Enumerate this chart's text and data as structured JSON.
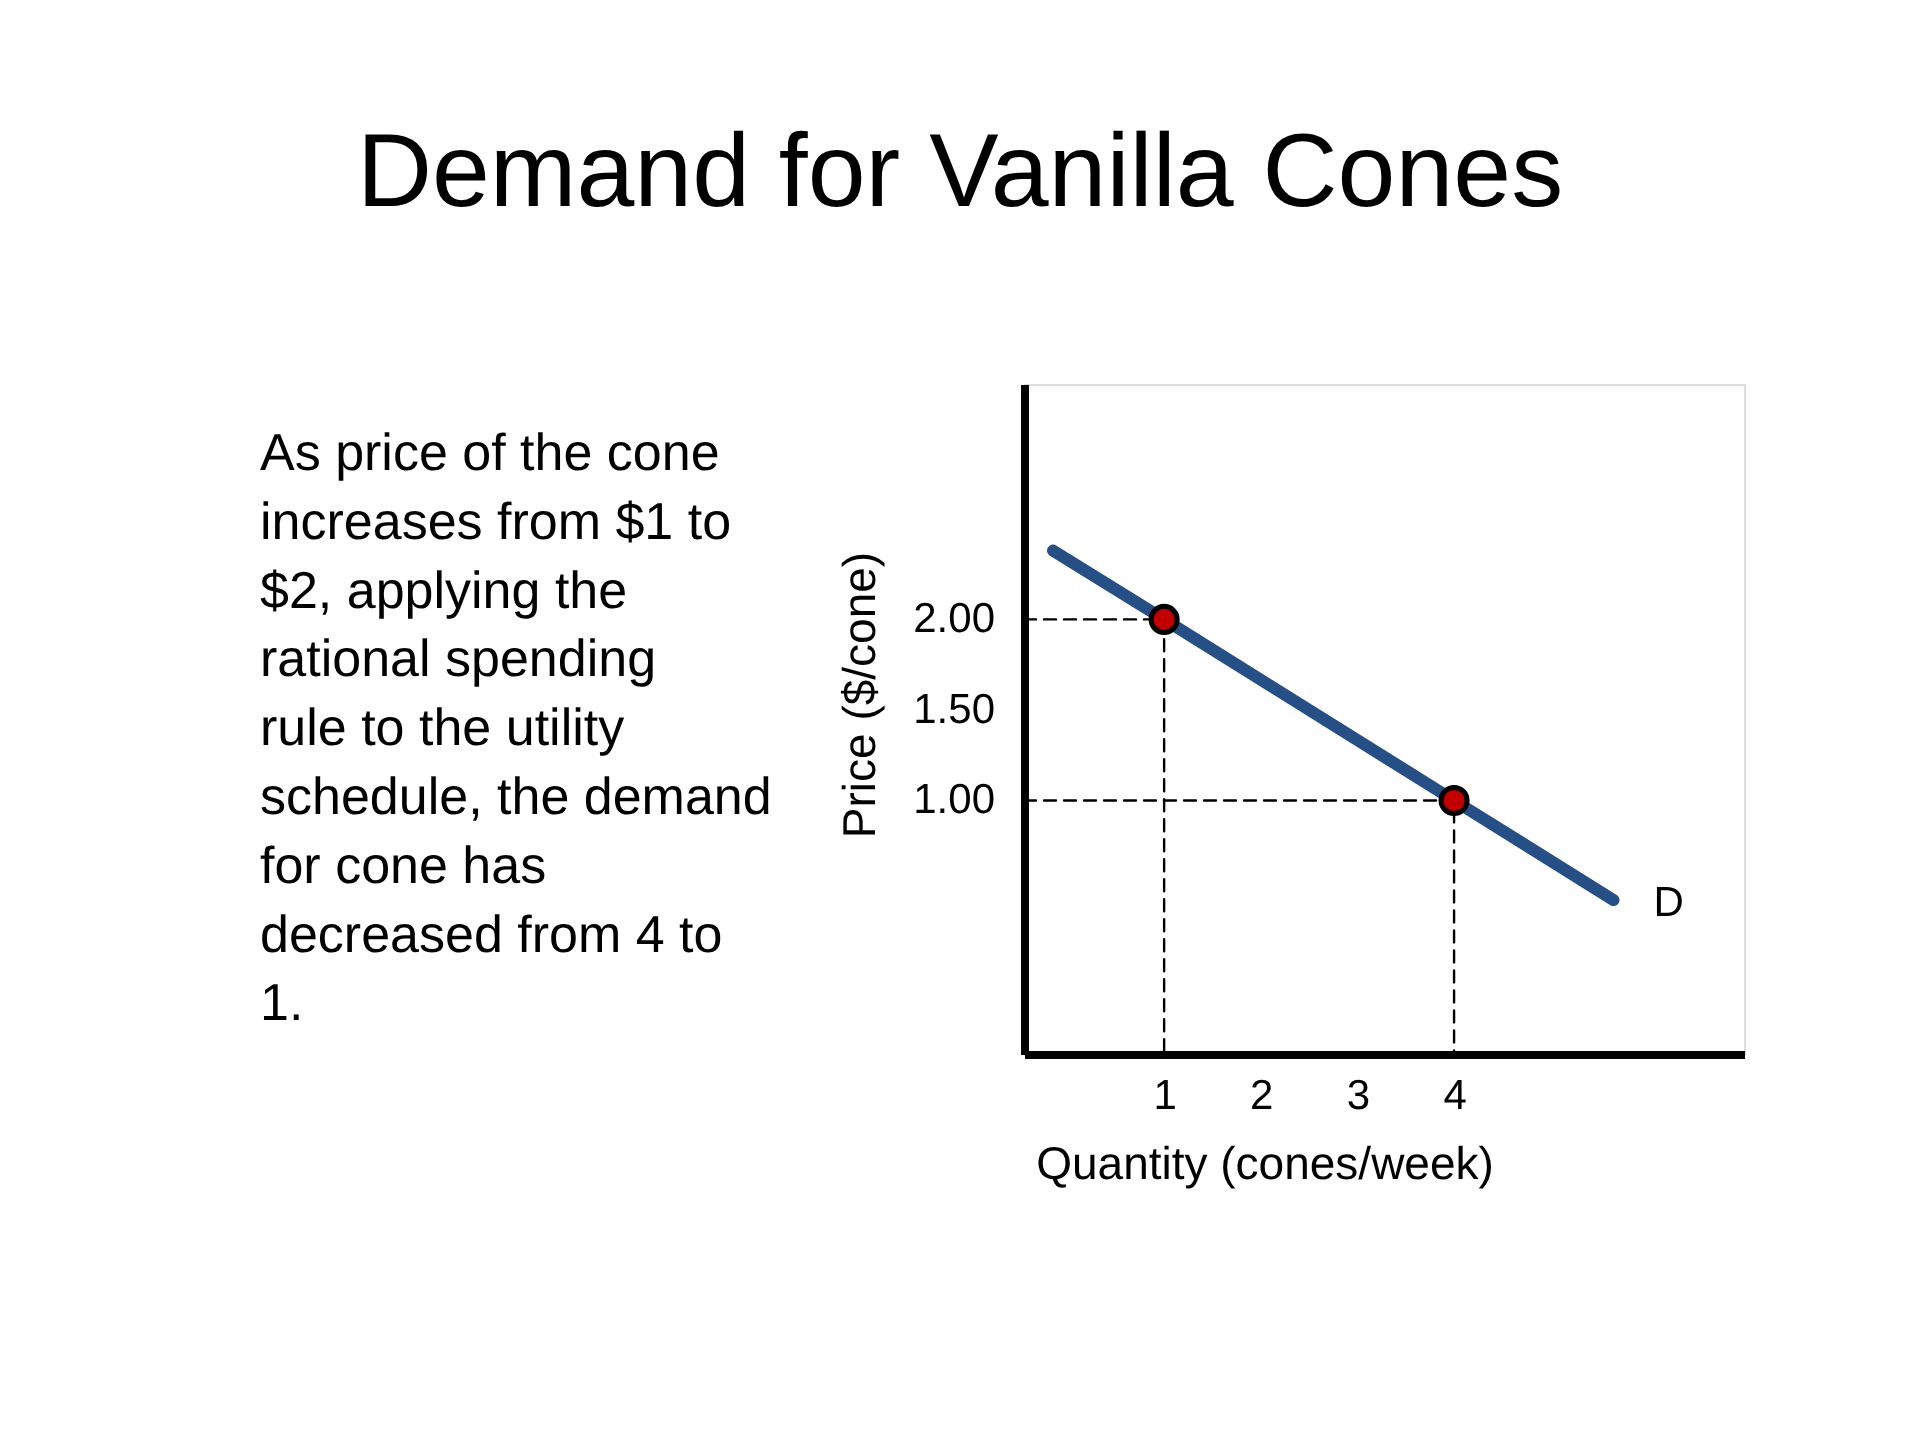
{
  "chart_data": {
    "type": "line",
    "title": "Demand for Vanilla Cones",
    "xlabel": "Quantity (cones/week)",
    "ylabel": "Price ($/cone)",
    "annotations": [
      "As price of the cone increases from $1 to $2, applying the rational spending rule to the utility schedule, the demand for cone has decreased from 4 to 1."
    ],
    "xlim": [
      -0.45,
      7
    ],
    "ylim": [
      -0.4,
      3.3
    ],
    "xticks": [
      1,
      2,
      3,
      4
    ],
    "yticks": [
      {
        "value": 1,
        "label": "1.00"
      },
      {
        "value": 1.5,
        "label": "1.50"
      },
      {
        "value": 2,
        "label": "2.00"
      }
    ],
    "series": [
      {
        "line_style": "dashed",
        "color": "#000000",
        "x": [
          -0.45,
          1,
          1
        ],
        "values": [
          2,
          2,
          -0.4
        ]
      },
      {
        "line_style": "dashed",
        "color": "#000000",
        "x": [
          -0.45,
          4,
          4
        ],
        "values": [
          1,
          1,
          -0.4
        ]
      },
      {
        "name": "D",
        "color": "#264f86",
        "x": [
          -0.15,
          1,
          4,
          5.65
        ],
        "values": [
          2.38,
          2,
          1,
          0.45
        ]
      },
      {
        "type": "scatter",
        "marker": "circle",
        "color": "#c00000",
        "x": [
          1,
          4
        ],
        "values": [
          2,
          1
        ]
      }
    ]
  }
}
